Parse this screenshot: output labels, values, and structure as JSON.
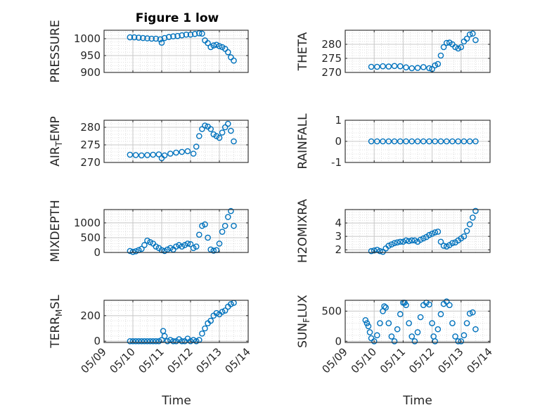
{
  "figure": {
    "title": "Figure 1 low",
    "xlabel": "Time",
    "x_ticks": [
      "05/09",
      "05/10",
      "05/11",
      "05/12",
      "05/13",
      "05/14"
    ],
    "marker_color": "#0072BD",
    "axis_color": "#262626",
    "grid_color": "#dfdfdf"
  },
  "chart_data": [
    {
      "type": "scatter",
      "ylabel": "PRESSURE",
      "ylim": [
        900,
        1025
      ],
      "yticks": [
        900,
        950,
        1000
      ],
      "x": [
        9.9,
        10.05,
        10.2,
        10.35,
        10.5,
        10.65,
        10.8,
        10.95,
        11.0,
        11.1,
        11.25,
        11.4,
        11.55,
        11.7,
        11.85,
        12.0,
        12.15,
        12.3,
        12.4,
        12.5,
        12.6,
        12.7,
        12.8,
        12.9,
        13.0,
        13.1,
        13.2,
        13.3,
        13.4,
        13.5
      ],
      "y": [
        1004,
        1004,
        1003,
        1002,
        1001,
        1000,
        1000,
        998,
        988,
        1002,
        1005,
        1007,
        1008,
        1010,
        1012,
        1012,
        1014,
        1016,
        1015,
        995,
        987,
        975,
        980,
        982,
        978,
        975,
        970,
        960,
        945,
        935
      ]
    },
    {
      "type": "scatter",
      "ylabel": "THETA",
      "ylim": [
        270,
        285
      ],
      "yticks": [
        270,
        275,
        280
      ],
      "x": [
        9.9,
        10.1,
        10.3,
        10.5,
        10.7,
        10.9,
        11.1,
        11.3,
        11.5,
        11.7,
        11.9,
        12.0,
        12.1,
        12.2,
        12.3,
        12.4,
        12.5,
        12.6,
        12.7,
        12.8,
        12.9,
        13.0,
        13.1,
        13.2,
        13.3,
        13.4,
        13.5
      ],
      "y": [
        272,
        272,
        272.2,
        272.1,
        272.3,
        272.2,
        271.8,
        271.5,
        271.6,
        271.9,
        271.5,
        271.2,
        272.5,
        273,
        276,
        279,
        280.5,
        280.6,
        280,
        279,
        278.5,
        279,
        281,
        282,
        283.5,
        283.8,
        281.5
      ]
    },
    {
      "type": "scatter",
      "ylabel": "AIR_TEMP",
      "ylim": [
        270,
        282
      ],
      "yticks": [
        270,
        275,
        280
      ],
      "x": [
        9.9,
        10.1,
        10.3,
        10.5,
        10.7,
        10.9,
        11.0,
        11.1,
        11.3,
        11.5,
        11.7,
        11.9,
        12.1,
        12.2,
        12.3,
        12.4,
        12.5,
        12.6,
        12.7,
        12.8,
        12.9,
        13.0,
        13.1,
        13.2,
        13.3,
        13.4,
        13.5
      ],
      "y": [
        272.2,
        272.1,
        272,
        272.1,
        272.2,
        272.3,
        271.2,
        272,
        272.5,
        272.8,
        273,
        273.2,
        272.5,
        274.5,
        277.5,
        279.5,
        280.5,
        280.2,
        279.5,
        278,
        277.5,
        277,
        278.5,
        280,
        281,
        279,
        276
      ]
    },
    {
      "type": "scatter",
      "ylabel": "RAINFALL",
      "ylim": [
        -1,
        1
      ],
      "yticks": [
        -1,
        0,
        1
      ],
      "x": [
        9.9,
        10.1,
        10.3,
        10.5,
        10.7,
        10.9,
        11.1,
        11.3,
        11.5,
        11.7,
        11.9,
        12.1,
        12.3,
        12.5,
        12.7,
        12.9,
        13.1,
        13.3,
        13.5
      ],
      "y": [
        0,
        0,
        0,
        0,
        0,
        0,
        0,
        0,
        0,
        0,
        0,
        0,
        0,
        0,
        0,
        0,
        0,
        0,
        0
      ]
    },
    {
      "type": "scatter",
      "ylabel": "MIXDEPTH",
      "ylim": [
        0,
        1450
      ],
      "yticks": [
        0,
        500,
        1000
      ],
      "x": [
        9.9,
        10.0,
        10.1,
        10.2,
        10.3,
        10.4,
        10.5,
        10.6,
        10.7,
        10.8,
        10.9,
        11.0,
        11.1,
        11.2,
        11.3,
        11.4,
        11.5,
        11.6,
        11.7,
        11.8,
        11.9,
        12.0,
        12.1,
        12.2,
        12.3,
        12.4,
        12.5,
        12.6,
        12.7,
        12.8,
        12.9,
        13.0,
        13.1,
        13.2,
        13.3,
        13.4,
        13.5
      ],
      "y": [
        50,
        20,
        40,
        80,
        120,
        250,
        400,
        350,
        300,
        200,
        150,
        80,
        50,
        100,
        150,
        100,
        200,
        250,
        200,
        250,
        300,
        280,
        150,
        200,
        600,
        900,
        950,
        500,
        100,
        60,
        80,
        300,
        700,
        900,
        1200,
        1400,
        900
      ]
    },
    {
      "type": "scatter",
      "ylabel": "H2OMIXRA",
      "ylim": [
        1.8,
        5
      ],
      "yticks": [
        2,
        3,
        4
      ],
      "x": [
        9.9,
        10.0,
        10.1,
        10.2,
        10.3,
        10.4,
        10.5,
        10.6,
        10.7,
        10.8,
        10.9,
        11.0,
        11.1,
        11.2,
        11.3,
        11.4,
        11.5,
        11.6,
        11.7,
        11.8,
        11.9,
        12.0,
        12.1,
        12.2,
        12.3,
        12.4,
        12.5,
        12.6,
        12.7,
        12.8,
        12.9,
        13.0,
        13.1,
        13.2,
        13.3,
        13.4,
        13.5
      ],
      "y": [
        1.9,
        1.95,
        2.0,
        1.9,
        1.85,
        2.1,
        2.3,
        2.4,
        2.5,
        2.55,
        2.6,
        2.6,
        2.7,
        2.65,
        2.7,
        2.7,
        2.6,
        2.75,
        2.85,
        2.95,
        3.1,
        3.2,
        3.3,
        3.35,
        2.6,
        2.3,
        2.25,
        2.35,
        2.5,
        2.55,
        2.7,
        2.85,
        3.0,
        3.4,
        3.9,
        4.4,
        4.9
      ]
    },
    {
      "type": "scatter",
      "ylabel": "TERR_MSL",
      "ylim": [
        -10,
        320
      ],
      "yticks": [
        0,
        200
      ],
      "x": [
        9.9,
        10.0,
        10.1,
        10.2,
        10.3,
        10.4,
        10.5,
        10.6,
        10.7,
        10.8,
        10.9,
        11.0,
        11.05,
        11.1,
        11.2,
        11.3,
        11.4,
        11.5,
        11.6,
        11.7,
        11.8,
        11.9,
        12.0,
        12.1,
        12.2,
        12.3,
        12.4,
        12.5,
        12.6,
        12.7,
        12.8,
        12.9,
        13.0,
        13.1,
        13.2,
        13.3,
        13.4,
        13.5
      ],
      "y": [
        0,
        0,
        0,
        0,
        0,
        0,
        0,
        0,
        0,
        0,
        0,
        10,
        80,
        40,
        0,
        10,
        0,
        0,
        15,
        0,
        0,
        20,
        0,
        10,
        0,
        10,
        60,
        100,
        140,
        160,
        200,
        220,
        210,
        230,
        240,
        270,
        290,
        300
      ]
    },
    {
      "type": "scatter",
      "ylabel": "SUN_FLUX",
      "ylim": [
        -20,
        680
      ],
      "yticks": [
        0,
        500
      ],
      "x": [
        9.7,
        9.75,
        9.8,
        9.85,
        9.9,
        10.0,
        10.1,
        10.2,
        10.3,
        10.35,
        10.4,
        10.5,
        10.6,
        10.7,
        10.8,
        10.9,
        11.0,
        11.05,
        11.1,
        11.2,
        11.3,
        11.4,
        11.5,
        11.6,
        11.7,
        11.8,
        11.9,
        12.0,
        12.05,
        12.1,
        12.2,
        12.3,
        12.4,
        12.5,
        12.6,
        12.7,
        12.8,
        12.9,
        13.0,
        13.1,
        13.2,
        13.3,
        13.4,
        13.5
      ],
      "y": [
        350,
        300,
        250,
        150,
        50,
        0,
        100,
        300,
        500,
        580,
        560,
        300,
        80,
        0,
        200,
        450,
        640,
        640,
        600,
        300,
        80,
        0,
        150,
        400,
        600,
        640,
        610,
        300,
        80,
        0,
        200,
        450,
        620,
        660,
        600,
        300,
        80,
        0,
        0,
        100,
        300,
        460,
        480,
        200
      ]
    }
  ]
}
